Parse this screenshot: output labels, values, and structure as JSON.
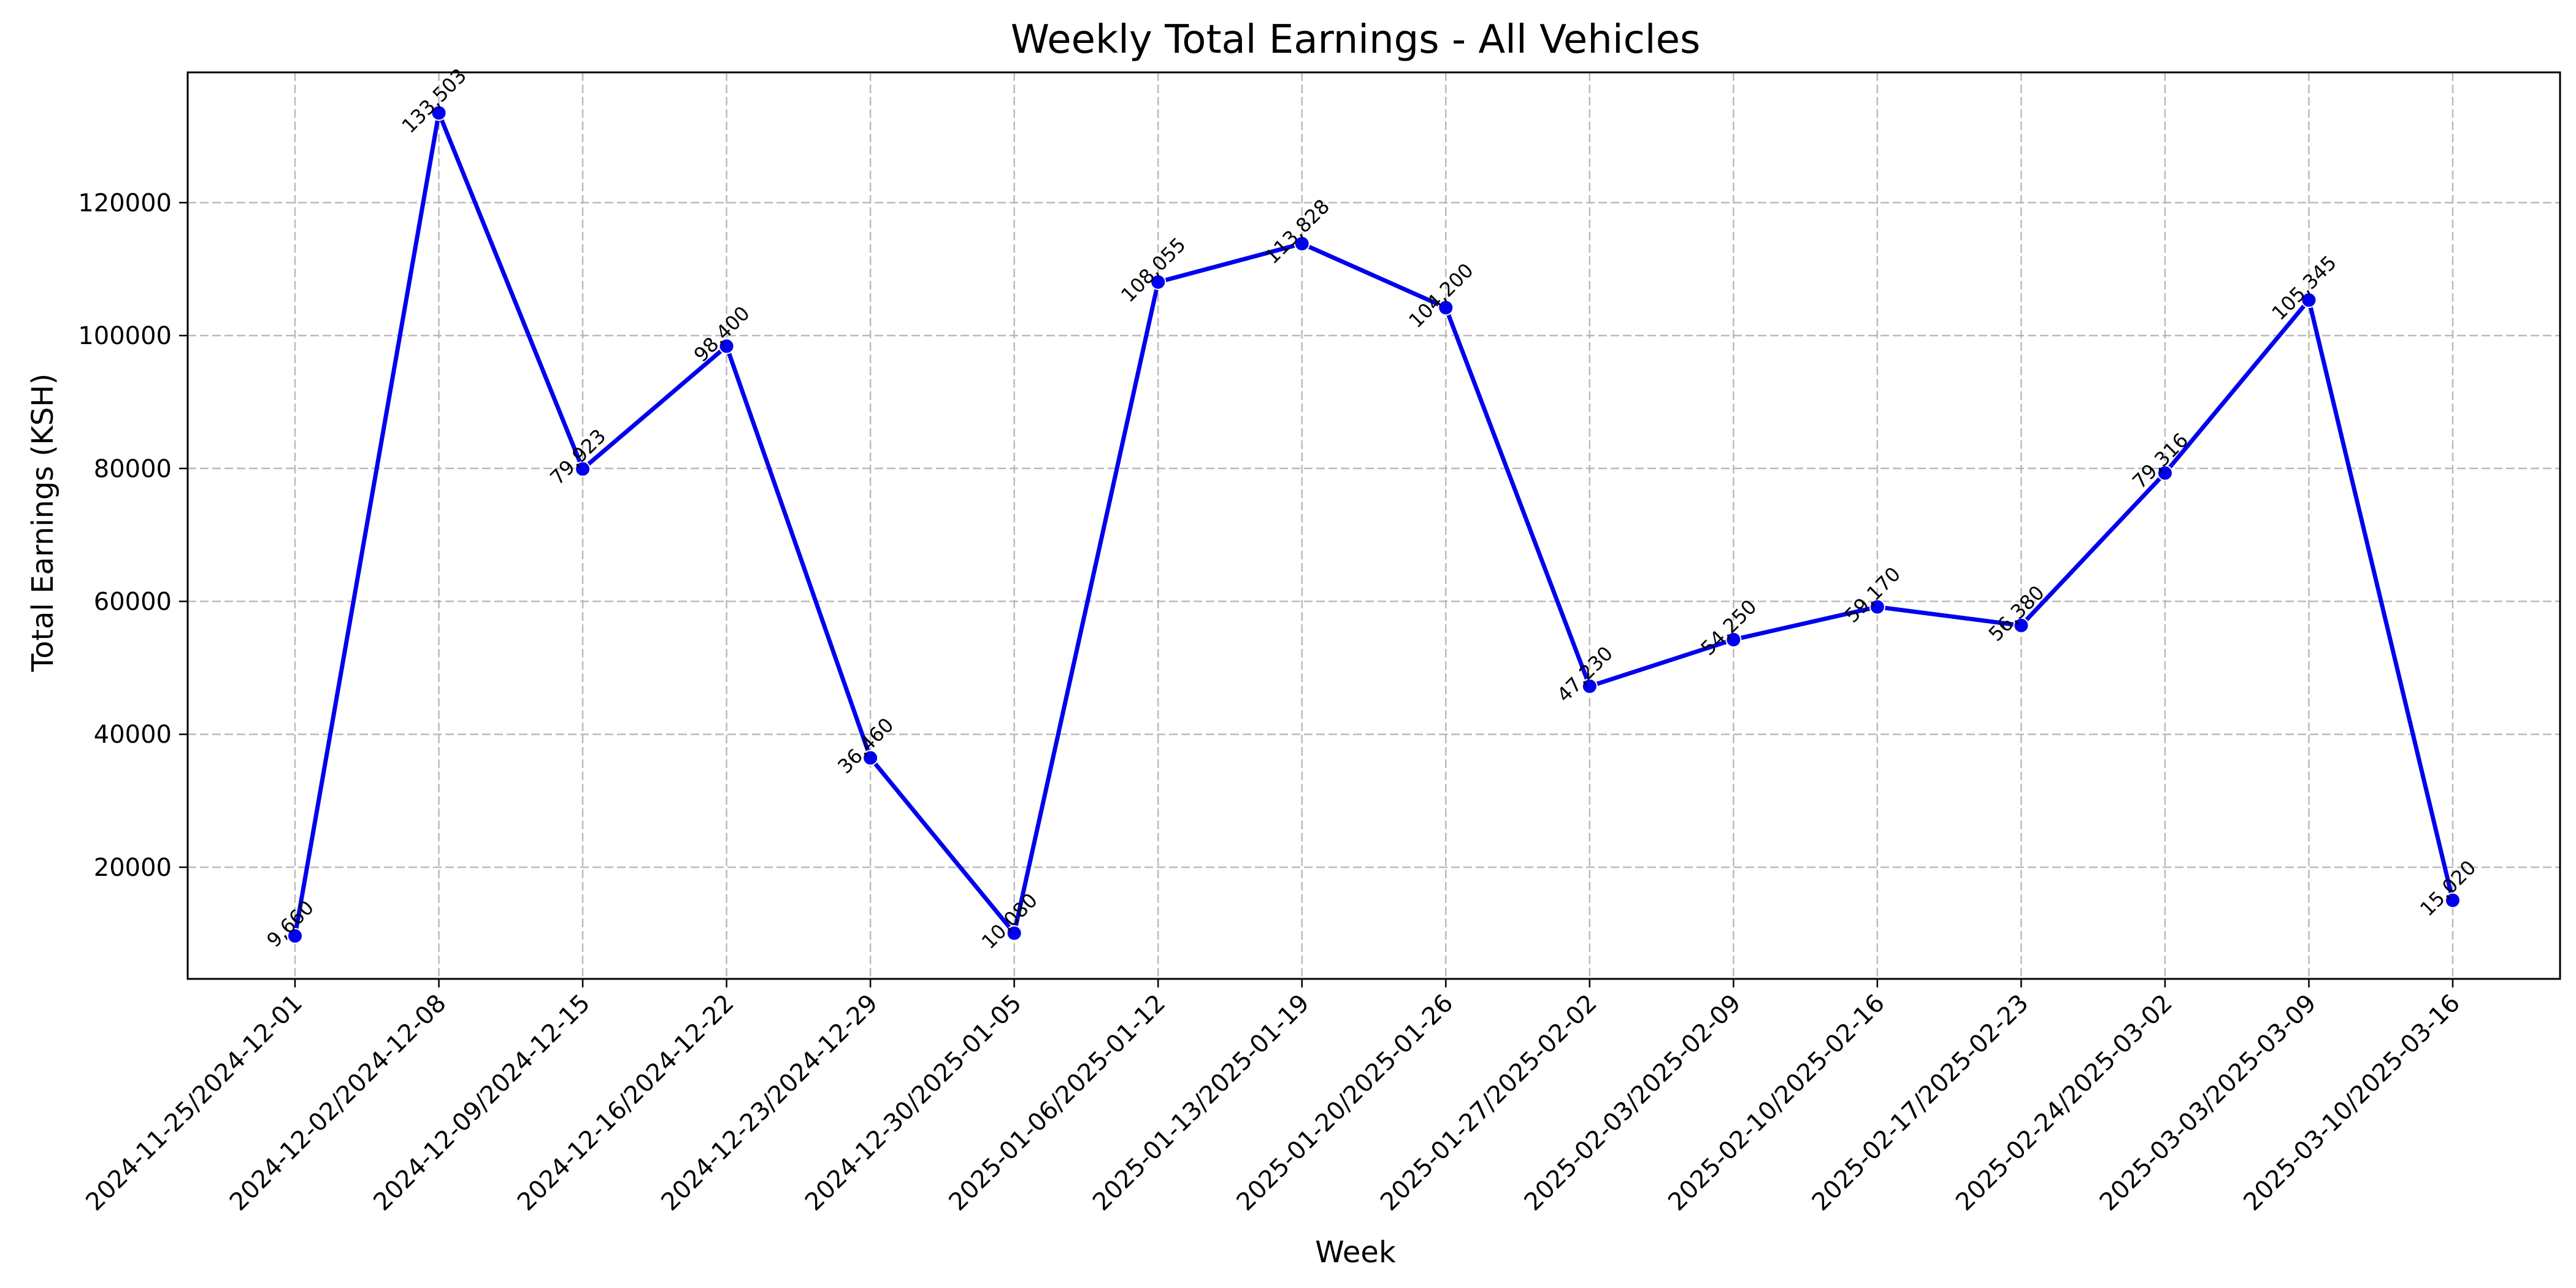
{
  "chart_data": {
    "type": "line",
    "title": "Weekly Total Earnings - All Vehicles",
    "xlabel": "Week",
    "ylabel": "Total Earnings (KSH)",
    "categories": [
      "2024-11-25/2024-12-01",
      "2024-12-02/2024-12-08",
      "2024-12-09/2024-12-15",
      "2024-12-16/2024-12-22",
      "2024-12-23/2024-12-29",
      "2024-12-30/2025-01-05",
      "2025-01-06/2025-01-12",
      "2025-01-13/2025-01-19",
      "2025-01-20/2025-01-26",
      "2025-01-27/2025-02-02",
      "2025-02-03/2025-02-09",
      "2025-02-10/2025-02-16",
      "2025-02-17/2025-02-23",
      "2025-02-24/2025-03-02",
      "2025-03-03/2025-03-09",
      "2025-03-10/2025-03-16"
    ],
    "values": [
      9660,
      133503,
      79923,
      98400,
      36460,
      10080,
      108055,
      113828,
      104200,
      47230,
      54250,
      59170,
      56380,
      79316,
      105345,
      15020
    ],
    "data_labels": [
      "9,660",
      "133,503",
      "79,923",
      "98,400",
      "36,460",
      "10,080",
      "108,055",
      "113,828",
      "104,200",
      "47,230",
      "54,250",
      "59,170",
      "56,380",
      "79,316",
      "105,345",
      "15,020"
    ],
    "yticks": [
      "20000",
      "40000",
      "60000",
      "80000",
      "100000",
      "120000"
    ],
    "ylim": [
      3200,
      139600
    ],
    "grid": true,
    "line_color": "#0000ee",
    "marker_color": "#0000ee"
  }
}
